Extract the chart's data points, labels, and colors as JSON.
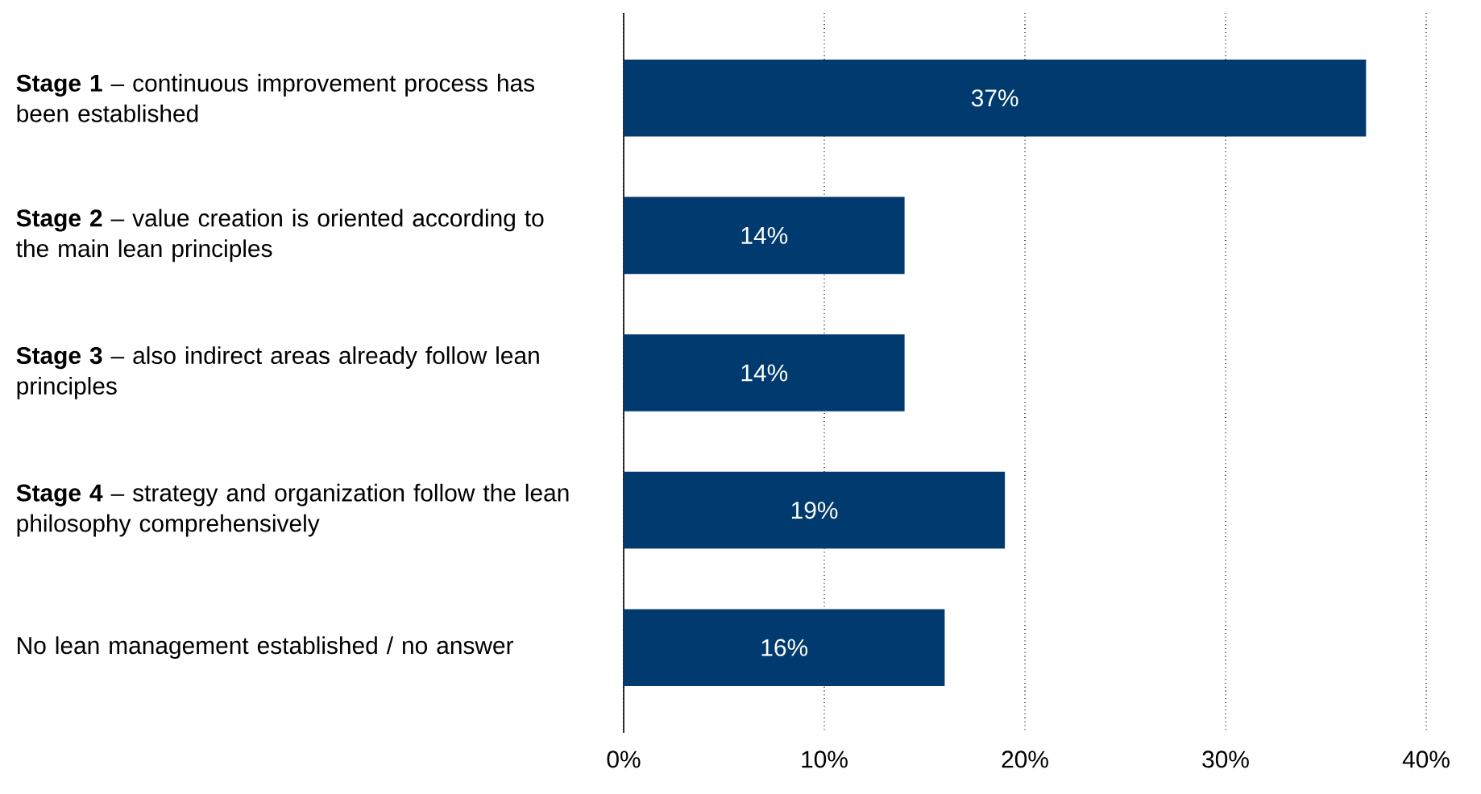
{
  "chart_data": {
    "type": "bar",
    "orientation": "horizontal",
    "categories": [
      "**Stage 1** – continuous improvement process has been established",
      "**Stage 2** – value creation is oriented according to the main lean principles",
      "**Stage 3** – also indirect areas already follow lean principles",
      "**Stage 4** – strategy and organization follow the lean philosophy comprehensively",
      "No lean management established / no answer"
    ],
    "values": [
      37,
      14,
      14,
      19,
      16
    ],
    "value_labels": [
      "37%",
      "14%",
      "14%",
      "19%",
      "16%"
    ],
    "color": "#003a6f",
    "xlim": [
      0,
      40
    ],
    "xticks": [
      {
        "value": 0,
        "label": "0%"
      },
      {
        "value": 10,
        "label": "10%"
      },
      {
        "value": 20,
        "label": "20%"
      },
      {
        "value": 30,
        "label": "30%"
      },
      {
        "value": 40,
        "label": "40%"
      }
    ],
    "grid": "x"
  }
}
